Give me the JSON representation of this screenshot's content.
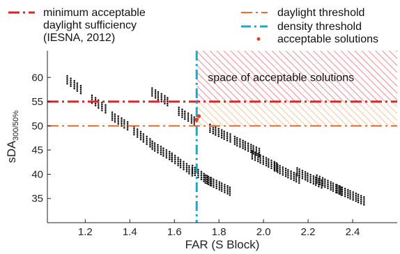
{
  "chart_data": {
    "type": "scatter",
    "xlabel": "FAR (S Block)",
    "ylabel_main": "sDA",
    "ylabel_sub": "300/50%",
    "xlim": [
      1.03,
      2.6
    ],
    "ylim": [
      30,
      65.5
    ],
    "x_ticks": [
      "1.2",
      "1.4",
      "1.6",
      "1.8",
      "2.0",
      "2.2",
      "2.4"
    ],
    "y_ticks": [
      "35",
      "40",
      "45",
      "50",
      "55",
      "60"
    ],
    "grid": false,
    "legend_position": "top",
    "legend": [
      {
        "key": "min_line",
        "lines": [
          "minimum acceptable",
          "daylight sufficiency",
          "(IESNA, 2012)"
        ]
      },
      {
        "key": "daylight_threshold",
        "lines": [
          "daylight threshold"
        ]
      },
      {
        "key": "density_threshold",
        "lines": [
          "density threshold"
        ]
      },
      {
        "key": "acceptable",
        "lines": [
          "acceptable solutions"
        ]
      }
    ],
    "annotation": "space of acceptable solutions",
    "reference_lines": {
      "minimum_sDA": 55,
      "daylight_threshold": 50,
      "density_threshold_far": 1.7
    },
    "region_upper": {
      "x": [
        1.7,
        2.6
      ],
      "y": [
        55,
        65.5
      ]
    },
    "region_lower": {
      "x": [
        1.7,
        2.6
      ],
      "y": [
        50,
        55
      ]
    },
    "clusters": [
      {
        "x0": 1.12,
        "x1": 1.18,
        "y0": 59.5,
        "y1": 57.5
      },
      {
        "x0": 1.23,
        "x1": 1.29,
        "y0": 55.5,
        "y1": 53.5
      },
      {
        "x0": 1.32,
        "x1": 1.39,
        "y0": 52.0,
        "y1": 50.0
      },
      {
        "x0": 1.42,
        "x1": 1.49,
        "y0": 49.0,
        "y1": 46.5
      },
      {
        "x0": 1.5,
        "x1": 1.57,
        "y0": 57.0,
        "y1": 55.0
      },
      {
        "x0": 1.5,
        "x1": 1.59,
        "y0": 46.0,
        "y1": 43.5
      },
      {
        "x0": 1.59,
        "x1": 1.68,
        "y0": 43.5,
        "y1": 40.5
      },
      {
        "x0": 1.62,
        "x1": 1.69,
        "y0": 53.0,
        "y1": 51.0
      },
      {
        "x0": 1.68,
        "x1": 1.76,
        "y0": 41.0,
        "y1": 38.5
      },
      {
        "x0": 1.74,
        "x1": 1.85,
        "y0": 39.0,
        "y1": 36.5
      },
      {
        "x0": 1.76,
        "x1": 1.85,
        "y0": 49.5,
        "y1": 47.5
      },
      {
        "x0": 1.87,
        "x1": 1.98,
        "y0": 47.0,
        "y1": 44.5
      },
      {
        "x0": 1.95,
        "x1": 2.06,
        "y0": 44.0,
        "y1": 41.5
      },
      {
        "x0": 2.05,
        "x1": 2.16,
        "y0": 41.5,
        "y1": 39.0
      },
      {
        "x0": 2.15,
        "x1": 2.26,
        "y0": 40.5,
        "y1": 38.0
      },
      {
        "x0": 2.24,
        "x1": 2.35,
        "y0": 39.0,
        "y1": 36.5
      },
      {
        "x0": 2.33,
        "x1": 2.45,
        "y0": 37.0,
        "y1": 34.5
      }
    ],
    "acceptable_points": [
      [
        1.7,
        51.3
      ],
      [
        1.71,
        52.0
      ]
    ],
    "colors": {
      "points": "#111111",
      "minimum_line": "#d7262b",
      "daylight_line": "#f06a2a",
      "density_line": "#19a9cc",
      "acceptable_marker": "#e53f2c",
      "hatch_upper": "#e5737a",
      "hatch_lower": "#f0b784",
      "axis": "#222222"
    }
  }
}
